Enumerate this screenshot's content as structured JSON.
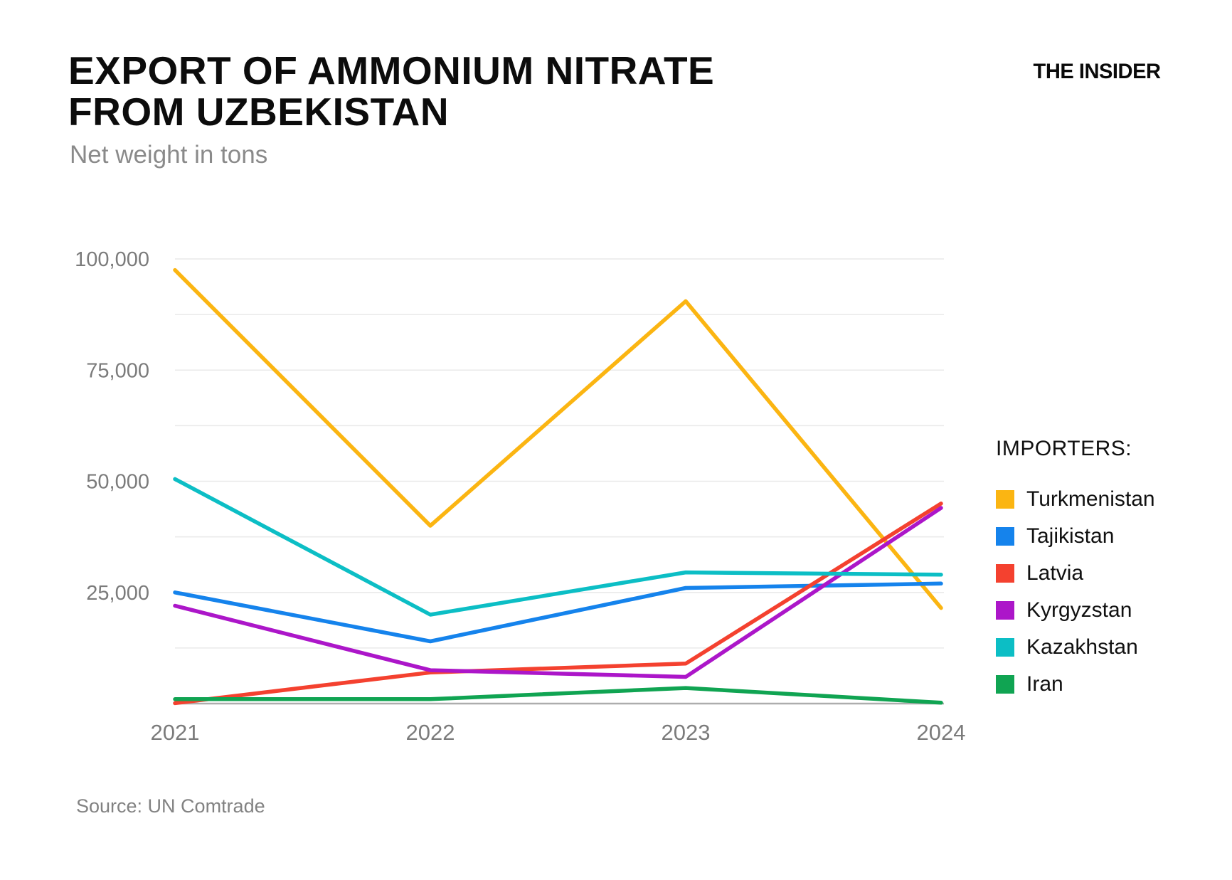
{
  "header": {
    "title_line1": "EXPORT OF AMMONIUM NITRATE",
    "title_line2": "FROM UZBEKISTAN",
    "subtitle": "Net weight in tons",
    "brand": "THE INSIDER"
  },
  "legend": {
    "title": "IMPORTERS:"
  },
  "footer": {
    "source": "Source: UN Comtrade"
  },
  "chart_data": {
    "type": "line",
    "title": "EXPORT OF AMMONIUM NITRATE FROM UZBEKISTAN",
    "subtitle": "Net weight in tons",
    "x": [
      "2021",
      "2022",
      "2023",
      "2024"
    ],
    "series": [
      {
        "name": "Turkmenistan",
        "color": "#FBB512",
        "values": [
          97500,
          40000,
          90500,
          21500
        ]
      },
      {
        "name": "Tajikistan",
        "color": "#1583EC",
        "values": [
          25000,
          14000,
          26000,
          27000
        ]
      },
      {
        "name": "Latvia",
        "color": "#F4412F",
        "values": [
          100,
          7000,
          9000,
          45000
        ]
      },
      {
        "name": "Kyrgyzstan",
        "color": "#AC16C9",
        "values": [
          22000,
          7500,
          6000,
          44000
        ]
      },
      {
        "name": "Kazakhstan",
        "color": "#0CBEC5",
        "values": [
          50500,
          20000,
          29500,
          29000
        ]
      },
      {
        "name": "Iran",
        "color": "#10A452",
        "values": [
          1000,
          1000,
          3500,
          200
        ]
      }
    ],
    "ylim": [
      0,
      100000
    ],
    "gridline_step": 12500,
    "yticks": [
      {
        "value": 25000,
        "label": "25,000"
      },
      {
        "value": 50000,
        "label": "50,000"
      },
      {
        "value": 75000,
        "label": "75,000"
      },
      {
        "value": 100000,
        "label": "100,000"
      }
    ],
    "grid": true,
    "legend_position": "right",
    "gridline_color": "#E9E9E9",
    "axis_color": "#ADADAD",
    "tick_label_color": "#7B7B7B"
  }
}
